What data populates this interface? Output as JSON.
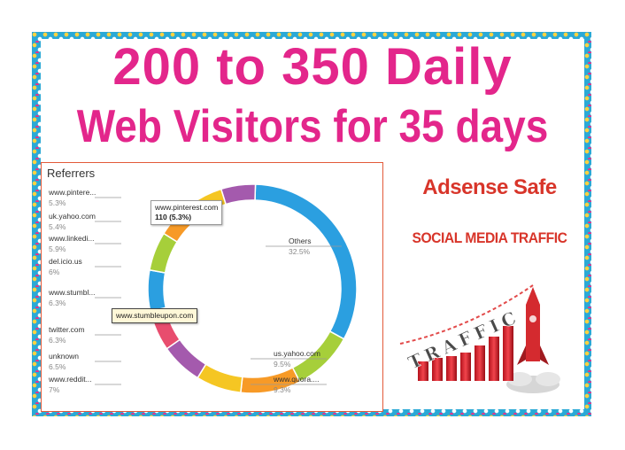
{
  "headline": {
    "line1": "200 to 350 Daily",
    "line2": "Web Visitors for 35 days"
  },
  "badges": {
    "adsense": "Adsense Safe",
    "social": "SOCIAL MEDIA TRAFFIC",
    "traffic_word": "TRAFFIC"
  },
  "referrers_panel": {
    "title": "Referrers",
    "tooltip_pinterest": {
      "name": "www.pinterest.com",
      "value": "110 (5.3%)"
    },
    "tooltip_stumble": "www.stumbleupon.com"
  },
  "chart_data": {
    "type": "pie",
    "title": "Referrers",
    "categories": [
      "Others",
      "us.yahoo.com",
      "www.quora....",
      "www.reddit...",
      "unknown",
      "twitter.com",
      "www.stumbl...",
      "del.icio.us",
      "www.linkedi...",
      "uk.yahoo.com",
      "www.pintere..."
    ],
    "values": [
      32.5,
      9.5,
      9.3,
      7,
      6.5,
      6.3,
      6.3,
      6,
      5.9,
      5.4,
      5.3
    ],
    "labels_pct": [
      "32.5%",
      "9.5%",
      "9.3%",
      "7%",
      "6.5%",
      "6.3%",
      "6.3%",
      "6%",
      "5.9%",
      "5.4%",
      "5.3%"
    ],
    "colors": [
      "#2b9fe0",
      "#a6cf3a",
      "#f79a27",
      "#f5c623",
      "#a45aad",
      "#e84d6e",
      "#2b9fe0",
      "#a6cf3a",
      "#f79a27",
      "#f5c623",
      "#a45aad"
    ],
    "hole": "donut"
  },
  "colors": {
    "headline": "#e3268b",
    "badge": "#d8352a",
    "frame": "#2aa9d6"
  }
}
